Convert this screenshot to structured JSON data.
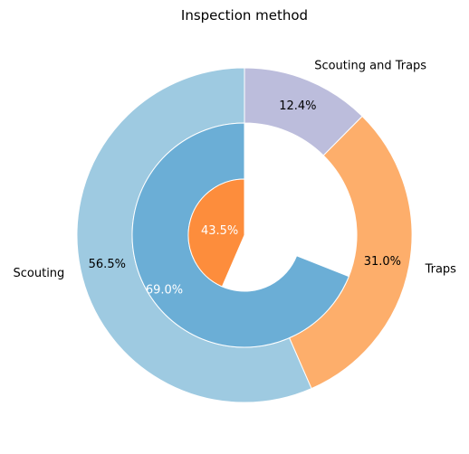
{
  "chart_data": {
    "type": "pie",
    "variant": "nested-donut",
    "title": "Inspection method",
    "outer_ring": {
      "categories": [
        "Scouting",
        "Traps",
        "Scouting and Traps"
      ],
      "values": [
        56.5,
        31.0,
        12.4
      ],
      "value_labels": [
        "56.5%",
        "31.0%",
        "12.4%"
      ],
      "colors": [
        "#9ecae1",
        "#fdae6b",
        "#bcbddc"
      ]
    },
    "inner_ring": {
      "values": [
        69.0,
        31.0
      ],
      "value_labels": [
        "69.0%",
        ""
      ],
      "colors": [
        "#6baed6",
        "#ffffff"
      ]
    },
    "center": {
      "values": [
        43.5,
        56.5
      ],
      "value_labels": [
        "43.5%",
        ""
      ],
      "colors": [
        "#fd8d3c",
        "#ffffff"
      ]
    },
    "start_angle": "12 o'clock",
    "direction": "counterclockwise"
  }
}
